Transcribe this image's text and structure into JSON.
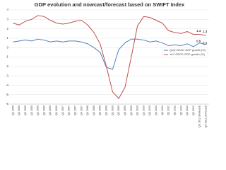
{
  "chart_data": {
    "type": "line",
    "title": "GDP evolution and nowcast/forecast based on SWIFT Index",
    "categories": [
      "Q1 2005",
      "Q2 2005",
      "Q3 2005",
      "Q4 2005",
      "Q1 2006",
      "Q2 2006",
      "Q3 2006",
      "Q4 2006",
      "Q1 2007",
      "Q2 2007",
      "Q3 2007",
      "Q4 2007",
      "Q1 2008",
      "Q2 2008",
      "Q3 2008",
      "Q4 2008",
      "Q1 2009",
      "Q2 2009",
      "Q3 2009",
      "Q4 2009",
      "Q1 2010",
      "Q2 2010",
      "Q3 2010",
      "Q4 2010",
      "Q1 2011",
      "Q2 2011",
      "Q3 2011",
      "Q4 2011",
      "Q1 2012",
      "Q2 2012",
      "Q3 2012 (Nowcast)",
      "Q4 2012 (Forecast)"
    ],
    "series": [
      {
        "name": "QoQ OECD GDP growth (%)",
        "color": "#4f81bd",
        "values": [
          0.6,
          0.7,
          0.8,
          0.7,
          0.9,
          0.8,
          0.6,
          0.7,
          0.6,
          0.7,
          0.7,
          0.6,
          0.4,
          0.0,
          -0.5,
          -2.1,
          -2.3,
          -0.2,
          0.5,
          0.9,
          0.9,
          0.8,
          0.6,
          0.7,
          0.5,
          0.2,
          0.3,
          0.2,
          0.4,
          0.1,
          0.5,
          0.3
        ]
      },
      {
        "name": "YoY OECD GDP growth (%)",
        "color": "#c0504d",
        "values": [
          2.6,
          2.4,
          2.8,
          3.0,
          3.4,
          3.3,
          2.9,
          2.6,
          2.5,
          2.6,
          2.8,
          2.9,
          2.4,
          1.6,
          0.4,
          -2.0,
          -4.7,
          -5.4,
          -4.2,
          -1.0,
          2.3,
          3.3,
          3.2,
          2.9,
          2.6,
          1.8,
          1.6,
          1.5,
          1.7,
          1.4,
          1.4,
          1.3
        ]
      }
    ],
    "ylim": [
      -6,
      4
    ],
    "yticks": [
      -6,
      -5,
      -4,
      -3,
      -2,
      -1,
      0,
      1,
      2,
      3,
      4
    ],
    "grid": true
  }
}
